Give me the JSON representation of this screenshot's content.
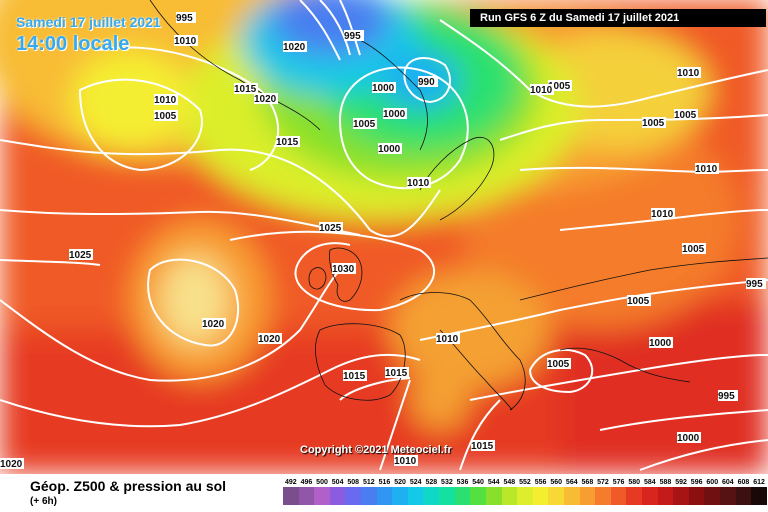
{
  "header": {
    "date_line": "Samedi 17 juillet 2021",
    "time_line": "14:00 locale",
    "run_info": "Run GFS 6 Z du Samedi 17 juillet 2021"
  },
  "copyright": "Copyright ©2021 Meteociel.fr",
  "footer": {
    "caption": "Géop. Z500 & pression au sol",
    "subcaption": "(+ 6h)"
  },
  "legend": {
    "labels": [
      "492",
      "496",
      "500",
      "504",
      "508",
      "512",
      "516",
      "520",
      "524",
      "528",
      "532",
      "536",
      "540",
      "544",
      "548",
      "552",
      "556",
      "560",
      "564",
      "568",
      "572",
      "576",
      "580",
      "584",
      "588",
      "592",
      "596",
      "600",
      "604",
      "608",
      "612"
    ],
    "colors": [
      "#7a4d8c",
      "#9256a8",
      "#b060c8",
      "#8c5ce0",
      "#6a6af0",
      "#4a7ef0",
      "#2f96f2",
      "#1eb0f0",
      "#14c8e8",
      "#10d8c8",
      "#14e0a0",
      "#2ae070",
      "#54e040",
      "#88e02a",
      "#b8e828",
      "#dcee2c",
      "#f4ee30",
      "#f8d834",
      "#f8bc34",
      "#f89e30",
      "#f47c2c",
      "#f05a28",
      "#e63a22",
      "#d8261e",
      "#c41a1a",
      "#a81414",
      "#8c0f0f",
      "#701010",
      "#561212",
      "#3c1010",
      "#180808"
    ]
  },
  "isobars": [
    "995",
    "1010",
    "1020",
    "995",
    "990",
    "1000",
    "1000",
    "1005",
    "1000",
    "1010",
    "1015",
    "1020",
    "1010",
    "1005",
    "1015",
    "1025",
    "1030",
    "1025",
    "1020",
    "1020",
    "1015",
    "1015",
    "1010",
    "1010",
    "1005",
    "1015",
    "1010",
    "1005",
    "1005",
    "1005",
    "1010",
    "1010",
    "1010",
    "1005",
    "1005",
    "995",
    "1000",
    "995",
    "1000",
    "1020"
  ]
}
